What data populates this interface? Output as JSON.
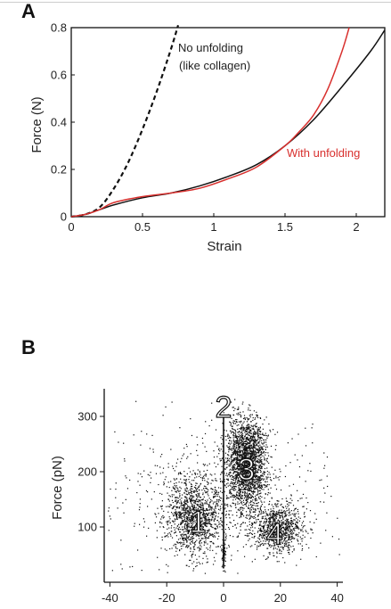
{
  "chart_data": [
    {
      "panel": "A",
      "type": "line",
      "xlabel": "Strain",
      "ylabel": "Force (N)",
      "xlim": [
        0,
        2.2
      ],
      "ylim": [
        0,
        0.8
      ],
      "xticks": [
        "0",
        "0.5",
        "1",
        "1.5",
        "2"
      ],
      "yticks": [
        "0",
        "0.2",
        "0.4",
        "0.6",
        "0.8"
      ],
      "grid": false,
      "series": [
        {
          "name": "No unfolding (like collagen)",
          "style": "dashed",
          "color": "#111111",
          "x": [
            0,
            0.1,
            0.2,
            0.3,
            0.4,
            0.5,
            0.6,
            0.7,
            0.75
          ],
          "y": [
            0,
            0.01,
            0.04,
            0.12,
            0.23,
            0.37,
            0.53,
            0.71,
            0.81
          ]
        },
        {
          "name": "",
          "style": "solid",
          "color": "#111111",
          "x": [
            0,
            0.1,
            0.2,
            0.3,
            0.5,
            0.7,
            0.9,
            1.1,
            1.3,
            1.5,
            1.7,
            1.9,
            2.1,
            2.2
          ],
          "y": [
            0,
            0.01,
            0.03,
            0.05,
            0.08,
            0.1,
            0.13,
            0.17,
            0.22,
            0.3,
            0.41,
            0.55,
            0.7,
            0.79
          ]
        },
        {
          "name": "With unfolding",
          "style": "solid",
          "color": "#d8302e",
          "x": [
            0,
            0.1,
            0.2,
            0.3,
            0.5,
            0.7,
            0.9,
            1.1,
            1.3,
            1.5,
            1.6,
            1.7,
            1.8,
            1.9,
            1.95
          ],
          "y": [
            0,
            0.01,
            0.03,
            0.06,
            0.085,
            0.1,
            0.12,
            0.16,
            0.21,
            0.3,
            0.36,
            0.43,
            0.54,
            0.7,
            0.8
          ]
        }
      ],
      "annotations": [
        {
          "text": "No unfolding",
          "color": "#222222"
        },
        {
          "text": "(like collagen)",
          "color": "#222222"
        },
        {
          "text": "With unfolding",
          "color": "#d8302e"
        }
      ]
    },
    {
      "panel": "B",
      "type": "scatter",
      "xlabel": "",
      "ylabel": "Force (pN)",
      "xlim": [
        -42,
        42
      ],
      "ylim": [
        0,
        350
      ],
      "xticks": [
        "-40",
        "-20",
        "0",
        "20",
        "40"
      ],
      "yticks": [
        "100",
        "200",
        "300"
      ],
      "grid": false,
      "divider_x": 0,
      "clusters": [
        {
          "label": "1",
          "cx": -10,
          "cy": 120,
          "sx": 5,
          "sy": 38,
          "n": 1300,
          "label_x": -9,
          "label_y": 110
        },
        {
          "label": "2",
          "cx": 0,
          "cy": 50,
          "sx": 0.4,
          "sy": 12,
          "n": 60,
          "label_x": 0,
          "label_y": 318
        },
        {
          "label": "3",
          "cx": 8,
          "cy": 215,
          "sx": 3.6,
          "sy": 42,
          "n": 2200,
          "label_x": 8,
          "label_y": 205
        },
        {
          "label": "4",
          "cx": 19,
          "cy": 98,
          "sx": 4.5,
          "sy": 22,
          "n": 900,
          "label_x": 18,
          "label_y": 88
        },
        {
          "label": "",
          "cx": 0,
          "cy": 170,
          "sx": 24,
          "sy": 80,
          "n": 500,
          "label_x": 0,
          "label_y": 0
        }
      ]
    }
  ]
}
